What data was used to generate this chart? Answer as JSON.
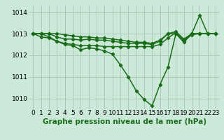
{
  "bg_color": "#cce8d8",
  "grid_color": "#aaccb8",
  "line_color": "#1a6e1a",
  "title": "Graphe pression niveau de la mer (hPa)",
  "xlabel_ticks": [
    0,
    1,
    2,
    3,
    4,
    5,
    6,
    7,
    8,
    9,
    10,
    11,
    12,
    13,
    14,
    15,
    16,
    17,
    18,
    19,
    20,
    21,
    22,
    23
  ],
  "xlim": [
    -0.5,
    23.5
  ],
  "ylim": [
    1009.5,
    1014.3
  ],
  "yticks": [
    1010,
    1011,
    1012,
    1013,
    1014
  ],
  "series": [
    [
      1013.0,
      1013.0,
      1012.85,
      1012.65,
      1012.5,
      1012.45,
      1012.25,
      1012.35,
      1012.3,
      1012.2,
      1012.05,
      1011.55,
      1011.0,
      1010.35,
      1009.95,
      1009.65,
      1010.65,
      1011.45,
      1013.0,
      1012.6,
      1013.0,
      1013.85,
      1013.0,
      1013.0
    ],
    [
      1013.0,
      1012.85,
      1012.8,
      1012.65,
      1012.55,
      1012.5,
      1012.45,
      1012.45,
      1012.45,
      1012.4,
      1012.4,
      1012.4,
      1012.4,
      1012.4,
      1012.4,
      1012.4,
      1012.5,
      1012.8,
      1013.05,
      1012.65,
      1012.95,
      1013.0,
      1013.0,
      1013.0
    ],
    [
      1013.0,
      1013.0,
      1013.0,
      1012.85,
      1012.75,
      1012.75,
      1012.7,
      1012.75,
      1012.7,
      1012.7,
      1012.65,
      1012.6,
      1012.55,
      1012.55,
      1012.55,
      1012.5,
      1012.65,
      1013.0,
      1013.1,
      1012.75,
      1013.0,
      1013.0,
      1013.0,
      1013.0
    ],
    [
      1013.0,
      1013.0,
      1013.0,
      1013.0,
      1012.95,
      1012.9,
      1012.85,
      1012.85,
      1012.8,
      1012.8,
      1012.75,
      1012.7,
      1012.65,
      1012.6,
      1012.6,
      1012.55,
      1012.7,
      1013.0,
      1013.0,
      1012.7,
      1013.0,
      1013.0,
      1013.0,
      1013.0
    ]
  ],
  "marker": "D",
  "markersize": 2.2,
  "linewidth": 1.1,
  "title_fontsize": 7.5,
  "tick_fontsize": 6.5
}
